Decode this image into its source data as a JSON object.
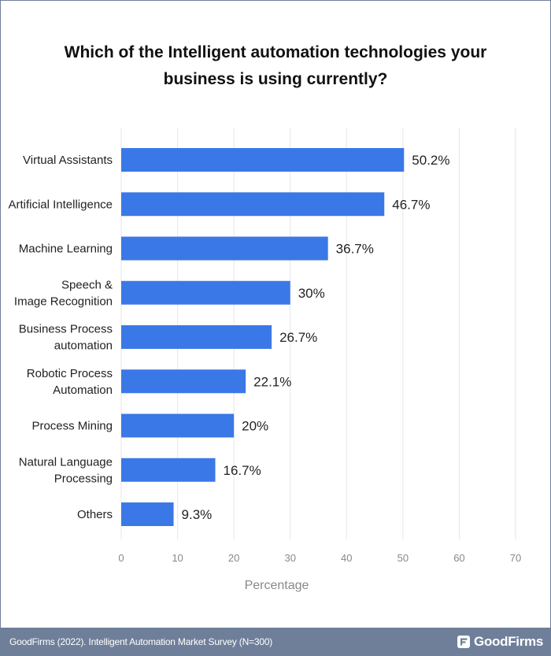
{
  "chart_data": {
    "type": "bar",
    "orientation": "horizontal",
    "title": "Which of the Intelligent automation technologies your business is using currently?",
    "xlabel": "Percentage",
    "ylabel": "",
    "xlim": [
      0,
      70
    ],
    "x_ticks": [
      0,
      10,
      20,
      30,
      40,
      50,
      60,
      70
    ],
    "grid": true,
    "bar_color": "#3b78e7",
    "categories": [
      [
        "Virtual Assistants"
      ],
      [
        "Artificial Intelligence"
      ],
      [
        "Machine Learning"
      ],
      [
        "Speech &",
        "Image Recognition"
      ],
      [
        "Business Process",
        "automation"
      ],
      [
        "Robotic Process",
        "Automation"
      ],
      [
        "Process Mining"
      ],
      [
        "Natural Language",
        "Processing"
      ],
      [
        "Others"
      ]
    ],
    "values": [
      50.2,
      46.7,
      36.7,
      30,
      26.7,
      22.1,
      20,
      16.7,
      9.3
    ],
    "value_labels": [
      "50.2%",
      "46.7%",
      "36.7%",
      "30%",
      "26.7%",
      "22.1%",
      "20%",
      "16.7%",
      "9.3%"
    ]
  },
  "footer": {
    "source": "GoodFirms (2022). Intelligent Automation Market Survey (N=300)",
    "brand": "GoodFirms",
    "brand_icon": "goodfirms-logo-icon",
    "background_color": "#6f7f99"
  }
}
